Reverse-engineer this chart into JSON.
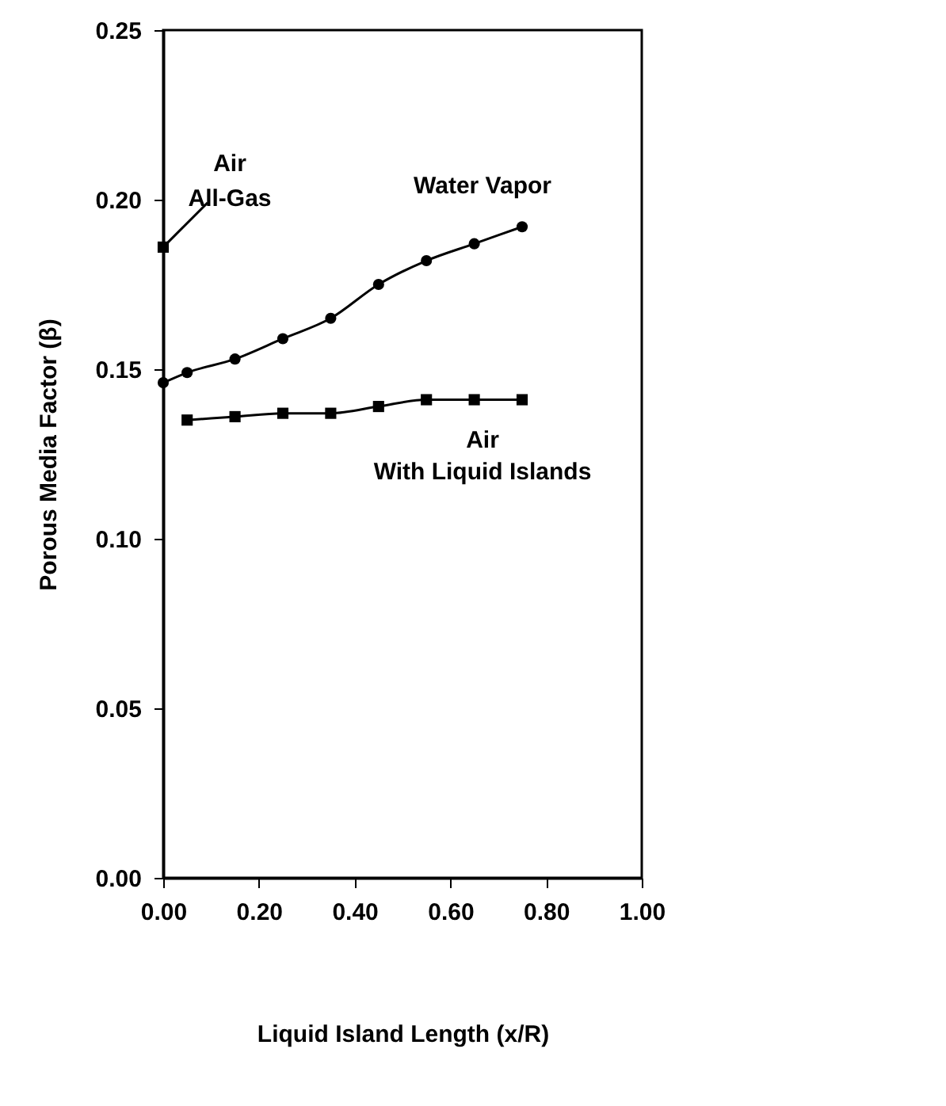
{
  "chart_data": {
    "type": "line",
    "xlabel": "Liquid Island Length (x/R)",
    "ylabel": "Porous Media Factor (β)",
    "xlim": [
      0,
      1
    ],
    "xticks": [
      {
        "value": 0,
        "label": "0.00"
      },
      {
        "value": 0.2,
        "label": "0.20"
      },
      {
        "value": 0.4,
        "label": "0.40"
      },
      {
        "value": 0.6,
        "label": "0.60"
      },
      {
        "value": 0.8,
        "label": "0.80"
      },
      {
        "value": 1,
        "label": "1.00"
      }
    ],
    "ylim": [
      0,
      0.25
    ],
    "yticks": [
      {
        "value": 0,
        "label": "0.00"
      },
      {
        "value": 0.05,
        "label": "0.05"
      },
      {
        "value": 0.1,
        "label": "0.10"
      },
      {
        "value": 0.15,
        "label": "0.15"
      },
      {
        "value": 0.2,
        "label": "0.20"
      },
      {
        "value": 0.25,
        "label": "0.25"
      }
    ],
    "grid": false,
    "legend": false,
    "series": [
      {
        "name": "Water Vapor",
        "color": "#000000",
        "marker": "circle",
        "x": [
          0,
          0.05,
          0.15,
          0.25,
          0.35,
          0.45,
          0.55,
          0.65,
          0.75
        ],
        "values": [
          0.146,
          0.149,
          0.153,
          0.159,
          0.165,
          0.175,
          0.182,
          0.187,
          0.192
        ]
      },
      {
        "name": "Air\nWith Liquid Islands",
        "color": "#000000",
        "marker": "square",
        "x": [
          0.05,
          0.15,
          0.25,
          0.35,
          0.45,
          0.55,
          0.65,
          0.75
        ],
        "values": [
          0.135,
          0.136,
          0.137,
          0.137,
          0.139,
          0.141,
          0.141,
          0.141
        ]
      },
      {
        "name": "Air\nAll-Gas",
        "type": "scatter",
        "color": "#000000",
        "marker": "square",
        "x": [
          0
        ],
        "values": [
          0.186
        ]
      }
    ]
  }
}
